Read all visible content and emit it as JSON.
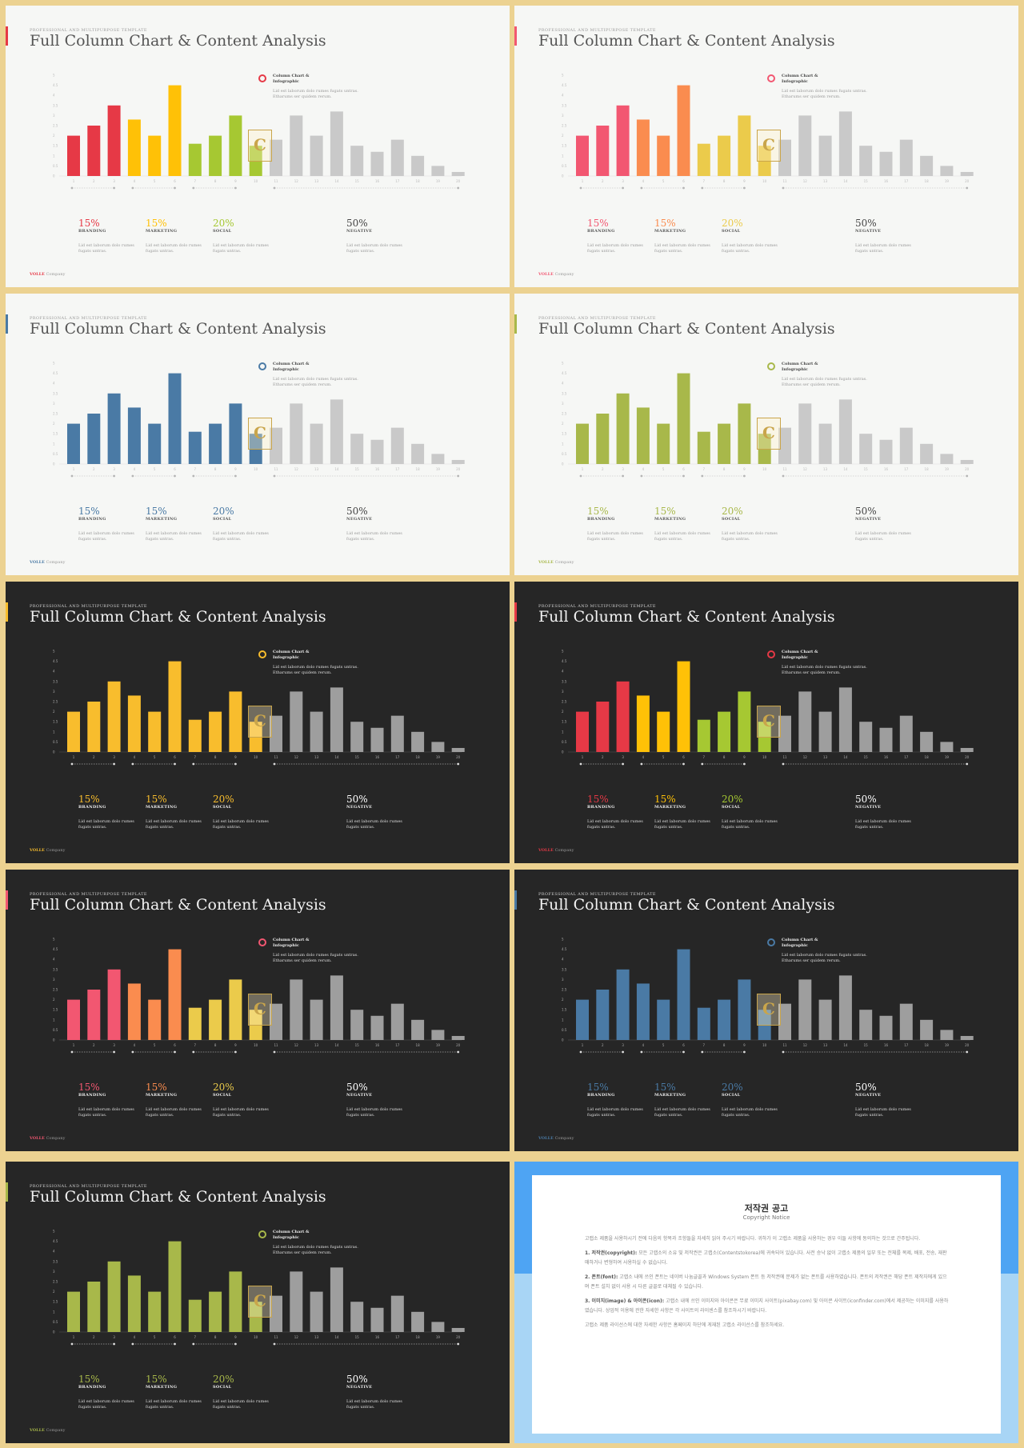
{
  "slides": [
    {
      "theme": "light",
      "colors": [
        "#e63946",
        "#e63946",
        "#e63946",
        "#ffc107",
        "#ffc107",
        "#ffc107",
        "#a6c832",
        "#a6c832",
        "#a6c832",
        "#a6c832"
      ],
      "ring": "#e63946",
      "brand": "#e63946",
      "stat_colors": [
        "#e63946",
        "#ffc107",
        "#a6c832",
        "#444444"
      ]
    },
    {
      "theme": "light",
      "colors": [
        "#f25771",
        "#f25771",
        "#f25771",
        "#fa8c4f",
        "#fa8c4f",
        "#fa8c4f",
        "#ebcb4b",
        "#ebcb4b",
        "#ebcb4b",
        "#ebcb4b"
      ],
      "ring": "#f25771",
      "brand": "#f25771",
      "stat_colors": [
        "#f25771",
        "#fa8c4f",
        "#ebcb4b",
        "#444444"
      ]
    },
    {
      "theme": "light",
      "colors": [
        "#4a7aa5",
        "#4a7aa5",
        "#4a7aa5",
        "#4a7aa5",
        "#4a7aa5",
        "#4a7aa5",
        "#4a7aa5",
        "#4a7aa5",
        "#4a7aa5",
        "#4a7aa5"
      ],
      "ring": "#4a7aa5",
      "brand": "#4a7aa5",
      "stat_colors": [
        "#4a7aa5",
        "#4a7aa5",
        "#4a7aa5",
        "#444444"
      ]
    },
    {
      "theme": "light",
      "colors": [
        "#a8b84a",
        "#a8b84a",
        "#a8b84a",
        "#a8b84a",
        "#a8b84a",
        "#a8b84a",
        "#a8b84a",
        "#a8b84a",
        "#a8b84a",
        "#a8b84a"
      ],
      "ring": "#a8b84a",
      "brand": "#a8b84a",
      "stat_colors": [
        "#a8b84a",
        "#a8b84a",
        "#a8b84a",
        "#444444"
      ]
    },
    {
      "theme": "dark",
      "colors": [
        "#f8bd2d",
        "#f8bd2d",
        "#f8bd2d",
        "#f8bd2d",
        "#f8bd2d",
        "#f8bd2d",
        "#f8bd2d",
        "#f8bd2d",
        "#f8bd2d",
        "#f8bd2d"
      ],
      "ring": "#f8bd2d",
      "brand": "#f8bd2d",
      "stat_colors": [
        "#f8bd2d",
        "#f8bd2d",
        "#f8bd2d",
        "#ffffff"
      ]
    },
    {
      "theme": "dark",
      "colors": [
        "#e63946",
        "#e63946",
        "#e63946",
        "#ffc107",
        "#ffc107",
        "#ffc107",
        "#a6c832",
        "#a6c832",
        "#a6c832",
        "#a6c832"
      ],
      "ring": "#e63946",
      "brand": "#e63946",
      "stat_colors": [
        "#e63946",
        "#ffc107",
        "#a6c832",
        "#ffffff"
      ]
    },
    {
      "theme": "dark",
      "colors": [
        "#f25771",
        "#f25771",
        "#f25771",
        "#fa8c4f",
        "#fa8c4f",
        "#fa8c4f",
        "#ebcb4b",
        "#ebcb4b",
        "#ebcb4b",
        "#ebcb4b"
      ],
      "ring": "#f25771",
      "brand": "#f25771",
      "stat_colors": [
        "#f25771",
        "#fa8c4f",
        "#ebcb4b",
        "#ffffff"
      ]
    },
    {
      "theme": "dark",
      "colors": [
        "#4a7aa5",
        "#4a7aa5",
        "#4a7aa5",
        "#4a7aa5",
        "#4a7aa5",
        "#4a7aa5",
        "#4a7aa5",
        "#4a7aa5",
        "#4a7aa5",
        "#4a7aa5"
      ],
      "ring": "#4a7aa5",
      "brand": "#4a7aa5",
      "stat_colors": [
        "#4a7aa5",
        "#4a7aa5",
        "#4a7aa5",
        "#ffffff"
      ]
    },
    {
      "theme": "dark",
      "colors": [
        "#a8b84a",
        "#a8b84a",
        "#a8b84a",
        "#a8b84a",
        "#a8b84a",
        "#a8b84a",
        "#a8b84a",
        "#a8b84a",
        "#a8b84a",
        "#a8b84a"
      ],
      "ring": "#a8b84a",
      "brand": "#a8b84a",
      "stat_colors": [
        "#a8b84a",
        "#a8b84a",
        "#a8b84a",
        "#ffffff"
      ]
    }
  ],
  "shared": {
    "supertitle": "PROFESSIONAL AND MULTIPURPOSE  TEMPLATE",
    "title": "Full Column Chart & Content Analysis",
    "info_title_1": "Column Chart &",
    "info_title_2": "Infographic",
    "info_desc": "Lid est laborum dolo rumes fugats untras. Etharums ser quidem rerum.",
    "stats": [
      {
        "pct": "15%",
        "name": "BRANDING",
        "desc": "Lid est laborum dolo rumes fugats untras."
      },
      {
        "pct": "15%",
        "name": "MARKETING",
        "desc": "Lid est laborum dolo rumes fugats untras."
      },
      {
        "pct": "20%",
        "name": "SOCIAL",
        "desc": "Lid est laborum dolo rumes fugats untras."
      },
      {
        "pct": "50%",
        "name": "NEGATIVE",
        "desc": "Lid est laborum dolo rumes fugats untras."
      }
    ],
    "brand": "VOLLE",
    "company": "Company",
    "watermark": "C",
    "gray_light": "#c9c9c9",
    "gray_dark": "#9e9e9e"
  },
  "chart_data": {
    "type": "bar",
    "categories": [
      "1",
      "2",
      "3",
      "4",
      "5",
      "6",
      "7",
      "8",
      "9",
      "10",
      "11",
      "12",
      "13",
      "14",
      "15",
      "16",
      "17",
      "18",
      "19",
      "20"
    ],
    "values": [
      2,
      2.5,
      3.5,
      2.8,
      2,
      4.5,
      1.6,
      2,
      3,
      1.5,
      1.8,
      3,
      2,
      3.2,
      1.5,
      1.2,
      1.8,
      1,
      0.5,
      0.2
    ],
    "yticks": [
      "5",
      "4.5",
      "4",
      "3.5",
      "3",
      "2.5",
      "2",
      "1.5",
      "1",
      "0.5",
      "0"
    ],
    "ylim": [
      0,
      5
    ],
    "highlight_count": 10
  },
  "copyright": {
    "heading": "저작권 공고",
    "sub": "Copyright Notice",
    "p1": "고랩소 제품을 사용하시기 전에 다음의 항목과 조항들을 자세히 읽어 주시기 바랍니다. 귀하가 이 고랩소 제품을 사용하는 경우 이들 사항에 동의하는 것으로 간주됩니다.",
    "p2_head": "1. 저작권(copyright):",
    "p2": "모든 고랩소의 소유 및 저작권은 고랩소(Contentstokorea)에 귀속되어 있습니다. 사전 승낙 없이 고랩소 제품의 일부 또는 전체를 복제, 배포, 전송, 재판매하거나 변형하여 사용하실 수 없습니다.",
    "p3_head": "2. 폰트(font):",
    "p3": "고랩소 내에 쓰인 폰트는 네이버 나눔글꼴과 Windows System 폰트 등 저작권에 문제가 없는 폰트를 사용하였습니다. 폰트의 저작권은 해당 폰트 제작자에게 있으며 폰트 설치 없이 사용 시 다른 글꼴로 대체될 수 있습니다.",
    "p4_head": "3. 이미지(image) & 아이콘(icon):",
    "p4": "고랩소 내에 쓰인 이미지와 아이콘은 무료 이미지 사이트(pixabay.com) 및 아이콘 사이트(iconfinder.com)에서 제공하는 이미지를 사용하였습니다. 상업적 이용에 관한 자세한 사항은 각 사이트의 라이센스를 참조하시기 바랍니다.",
    "p5": "고랩소 제품 라이선스에 대한 자세한 사항은 홈페이지 하단에 게재된 고랩소 라이선스를 참조하세요."
  }
}
